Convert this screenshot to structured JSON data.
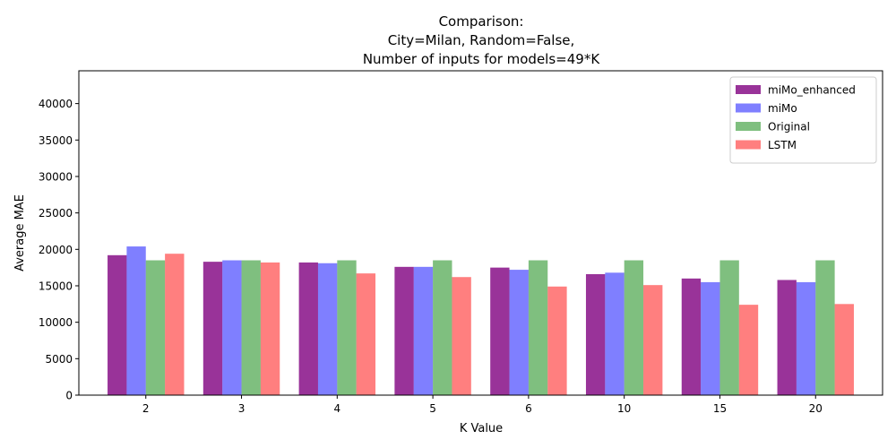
{
  "chart_data": {
    "type": "bar",
    "title_lines": [
      "Comparison:",
      "City=Milan, Random=False,",
      "Number of inputs for models=49*K"
    ],
    "xlabel": "K Value",
    "ylabel": "Average MAE",
    "categories": [
      "2",
      "3",
      "4",
      "5",
      "6",
      "10",
      "15",
      "20"
    ],
    "ylim": [
      0,
      44500
    ],
    "yticks": [
      0,
      5000,
      10000,
      15000,
      20000,
      25000,
      30000,
      35000,
      40000
    ],
    "legend_position": "top-right",
    "series": [
      {
        "name": "miMo_enhanced",
        "color": "#800080",
        "alpha": 0.8,
        "values": [
          19200,
          18300,
          18200,
          17600,
          17500,
          16600,
          16000,
          15800
        ]
      },
      {
        "name": "miMo",
        "color": "#0000ff",
        "alpha": 0.5,
        "values": [
          20400,
          18500,
          18100,
          17600,
          17200,
          16800,
          15500,
          15500
        ]
      },
      {
        "name": "Original",
        "color": "#008000",
        "alpha": 0.5,
        "values": [
          18500,
          18500,
          18500,
          18500,
          18500,
          18500,
          18500,
          18500
        ]
      },
      {
        "name": "LSTM",
        "color": "#ff0000",
        "alpha": 0.5,
        "values": [
          19400,
          18200,
          16700,
          16200,
          14900,
          15100,
          12400,
          12500
        ]
      }
    ]
  }
}
